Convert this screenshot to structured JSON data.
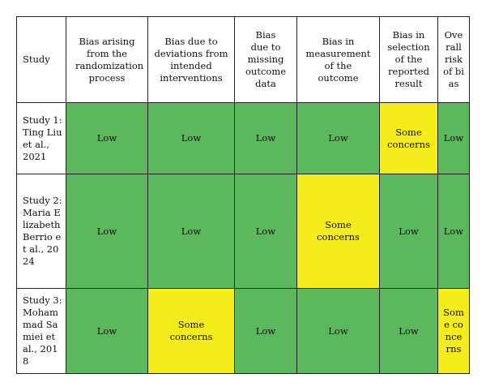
{
  "table": {
    "headers": [
      "Study",
      "Bias arising from the randomization process",
      "Bias due to deviations from intended interventions",
      "Bias due to missing outcome data",
      "Bias in measurement of the outcome",
      "Bias in selection of the reported result",
      "Overall risk of bias"
    ],
    "rows": [
      {
        "study": "Study 1: Ting Liu et al., 2021",
        "cells": [
          "Low",
          "Low",
          "Low",
          "Low",
          "Some concerns",
          "Low"
        ]
      },
      {
        "study": "Study 2: Maria Elizabeth Berrio et al., 2024",
        "cells": [
          "Low",
          "Low",
          "Low",
          "Some concerns",
          "Low",
          "Low"
        ]
      },
      {
        "study": "Study 3: Mohammad Samiei et al., 2018",
        "cells": [
          "Low",
          "Some concerns",
          "Low",
          "Low",
          "Low",
          "Some concerns"
        ]
      }
    ]
  },
  "colors": {
    "low": "#5cb85c",
    "some_concerns": "#f5ec1b",
    "border": "#222222"
  }
}
